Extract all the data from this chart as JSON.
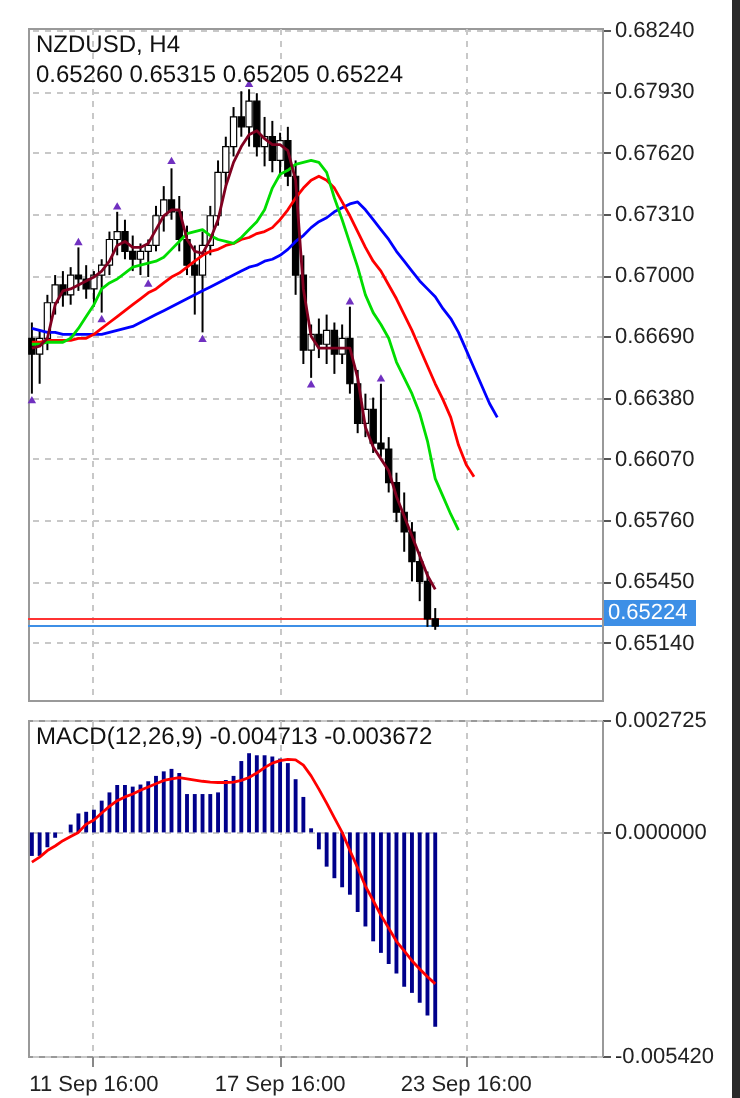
{
  "chart_data": [
    {
      "type": "candlestick",
      "title": "NZDUSD, H4",
      "subtitle": "0.65260 0.65315 0.65205 0.65224",
      "categories": [
        null,
        null,
        null,
        null,
        null,
        null,
        null,
        null,
        null,
        null,
        null,
        null,
        null,
        null,
        null,
        null,
        null,
        null,
        null,
        null,
        null,
        null,
        null,
        null,
        null,
        null,
        null,
        null,
        null,
        null,
        null,
        null,
        null,
        null,
        null,
        null,
        null,
        null,
        null,
        null,
        null,
        null,
        null,
        null,
        null,
        null,
        null,
        null,
        null,
        null,
        null,
        null,
        null,
        null,
        null,
        null,
        null,
        null,
        null,
        null,
        null,
        null,
        null,
        null,
        null,
        null,
        null,
        null,
        null,
        null,
        null,
        null,
        null,
        null
      ],
      "ohlc": [
        [
          0.6668,
          0.6676,
          0.664,
          0.666
        ],
        [
          0.666,
          0.6672,
          0.6645,
          0.6668
        ],
        [
          0.6668,
          0.669,
          0.6662,
          0.6686
        ],
        [
          0.6686,
          0.67,
          0.668,
          0.6695
        ],
        [
          0.6695,
          0.6702,
          0.6684,
          0.669
        ],
        [
          0.669,
          0.6704,
          0.6685,
          0.67
        ],
        [
          0.67,
          0.6714,
          0.6692,
          0.6698
        ],
        [
          0.6698,
          0.6705,
          0.6688,
          0.6693
        ],
        [
          0.6693,
          0.6702,
          0.6684,
          0.67
        ],
        [
          0.67,
          0.6708,
          0.6681,
          0.6705
        ],
        [
          0.6705,
          0.6722,
          0.67,
          0.6718
        ],
        [
          0.6718,
          0.6732,
          0.671,
          0.6722
        ],
        [
          0.6722,
          0.6728,
          0.6708,
          0.6712
        ],
        [
          0.6712,
          0.672,
          0.6702,
          0.6708
        ],
        [
          0.6708,
          0.6716,
          0.67,
          0.6712
        ],
        [
          0.6712,
          0.6718,
          0.6699,
          0.6715
        ],
        [
          0.6715,
          0.6735,
          0.6712,
          0.673
        ],
        [
          0.673,
          0.6745,
          0.6722,
          0.6738
        ],
        [
          0.6738,
          0.6754,
          0.6728,
          0.6732
        ],
        [
          0.6732,
          0.674,
          0.6712,
          0.6718
        ],
        [
          0.6718,
          0.6725,
          0.67,
          0.6705
        ],
        [
          0.6705,
          0.6715,
          0.668,
          0.67
        ],
        [
          0.67,
          0.6722,
          0.6671,
          0.6715
        ],
        [
          0.6715,
          0.6735,
          0.671,
          0.673
        ],
        [
          0.673,
          0.6758,
          0.6725,
          0.6752
        ],
        [
          0.6752,
          0.677,
          0.6745,
          0.6765
        ],
        [
          0.6765,
          0.6785,
          0.676,
          0.678
        ],
        [
          0.678,
          0.6793,
          0.677,
          0.6775
        ],
        [
          0.6775,
          0.6794,
          0.6765,
          0.6788
        ],
        [
          0.6788,
          0.6792,
          0.676,
          0.6765
        ],
        [
          0.6765,
          0.678,
          0.6755,
          0.677
        ],
        [
          0.677,
          0.6778,
          0.6752,
          0.6758
        ],
        [
          0.6758,
          0.6772,
          0.675,
          0.6768
        ],
        [
          0.6768,
          0.6775,
          0.6745,
          0.675
        ],
        [
          0.675,
          0.6758,
          0.669,
          0.67
        ],
        [
          0.67,
          0.671,
          0.6655,
          0.6662
        ],
        [
          0.6662,
          0.6675,
          0.6648,
          0.667
        ],
        [
          0.667,
          0.6678,
          0.6658,
          0.6665
        ],
        [
          0.6665,
          0.668,
          0.6655,
          0.6672
        ],
        [
          0.6672,
          0.6676,
          0.665,
          0.666
        ],
        [
          0.666,
          0.6675,
          0.6655,
          0.6668
        ],
        [
          0.6668,
          0.6684,
          0.664,
          0.6645
        ],
        [
          0.6645,
          0.6652,
          0.662,
          0.6625
        ],
        [
          0.6625,
          0.664,
          0.6618,
          0.6632
        ],
        [
          0.6632,
          0.6638,
          0.661,
          0.6615
        ],
        [
          0.6615,
          0.6645,
          0.6608,
          0.6612
        ],
        [
          0.6612,
          0.6618,
          0.659,
          0.6595
        ],
        [
          0.6595,
          0.66,
          0.6575,
          0.658
        ],
        [
          0.658,
          0.659,
          0.656,
          0.657
        ],
        [
          0.657,
          0.6575,
          0.6545,
          0.6555
        ],
        [
          0.6555,
          0.656,
          0.6535,
          0.6545
        ],
        [
          0.6545,
          0.655,
          0.6522,
          0.6526
        ],
        [
          0.6526,
          0.65315,
          0.65205,
          0.65224
        ],
        null,
        null,
        null,
        null,
        null,
        null,
        null,
        null,
        null,
        null,
        null,
        null,
        null,
        null,
        null,
        null,
        null,
        null,
        null,
        null,
        null
      ],
      "series": [
        {
          "type": "line",
          "color": "#0000ff",
          "values": [
            0.6673,
            0.6672,
            0.6671,
            0.6671,
            0.667,
            0.667,
            0.667,
            0.667,
            0.667,
            0.667,
            0.6671,
            0.6672,
            0.6673,
            0.6674,
            0.6676,
            0.6678,
            0.668,
            0.6682,
            0.6684,
            0.6686,
            0.6688,
            0.669,
            0.6692,
            0.6694,
            0.6696,
            0.6698,
            0.67,
            0.6702,
            0.6704,
            0.6705,
            0.6707,
            0.6708,
            0.671,
            0.6713,
            0.6717,
            0.672,
            0.6724,
            0.6727,
            0.6729,
            0.6732,
            0.6734,
            0.6736,
            0.6737,
            0.6733,
            0.6728,
            0.6723,
            0.6718,
            0.6712,
            0.6707,
            0.6702,
            0.6697,
            0.6693,
            0.6689,
            0.6683,
            0.6678,
            0.6671,
            0.6662,
            0.6653,
            0.6644,
            0.6635,
            0.6628,
            null,
            null,
            null,
            null,
            null,
            null,
            null,
            null,
            null,
            null,
            null,
            null,
            null
          ]
        },
        {
          "type": "line",
          "color": "#ff0000",
          "values": [
            0.6666,
            0.6666,
            0.6667,
            0.6667,
            0.6667,
            0.6667,
            0.6668,
            0.6668,
            0.667,
            0.6673,
            0.6676,
            0.6679,
            0.6682,
            0.6685,
            0.6688,
            0.6691,
            0.6693,
            0.6696,
            0.6699,
            0.6701,
            0.6704,
            0.6707,
            0.671,
            0.6712,
            0.6713,
            0.6715,
            0.6716,
            0.6718,
            0.6719,
            0.6721,
            0.6722,
            0.6724,
            0.6728,
            0.6733,
            0.6739,
            0.6744,
            0.6748,
            0.675,
            0.6748,
            0.6744,
            0.6737,
            0.673,
            0.6722,
            0.6714,
            0.6707,
            0.6702,
            0.6695,
            0.6688,
            0.668,
            0.6672,
            0.6663,
            0.6654,
            0.6645,
            0.6637,
            0.6628,
            0.6614,
            0.6604,
            0.6598,
            null,
            null,
            null,
            null,
            null,
            null,
            null,
            null,
            null,
            null,
            null,
            null,
            null,
            null,
            null,
            null
          ]
        },
        {
          "type": "line",
          "color": "#00dd00",
          "values": [
            0.6665,
            0.6665,
            0.6666,
            0.6666,
            0.6666,
            0.6668,
            0.6673,
            0.6679,
            0.6685,
            0.6693,
            0.6696,
            0.6698,
            0.6701,
            0.6704,
            0.6705,
            0.6706,
            0.6707,
            0.6709,
            0.6713,
            0.6717,
            0.6721,
            0.6722,
            0.6723,
            0.672,
            0.6718,
            0.6717,
            0.6716,
            0.6719,
            0.6723,
            0.6727,
            0.6733,
            0.6744,
            0.6751,
            0.6753,
            0.6756,
            0.6757,
            0.6758,
            0.6757,
            0.6752,
            0.6739,
            0.6728,
            0.6716,
            0.6704,
            0.669,
            0.6681,
            0.6675,
            0.6668,
            0.6656,
            0.6648,
            0.664,
            0.663,
            0.6616,
            0.6597,
            0.6588,
            0.6579,
            0.6571,
            null,
            null,
            null,
            null,
            null,
            null,
            null,
            null,
            null,
            null,
            null,
            null,
            null,
            null,
            null,
            null,
            null,
            null
          ]
        },
        {
          "type": "line",
          "color": "#800020",
          "values": [
            0.6663,
            0.6664,
            0.6668,
            0.6685,
            0.6692,
            0.6693,
            0.6695,
            0.6697,
            0.6699,
            0.6702,
            0.6707,
            0.6715,
            0.6717,
            0.6714,
            0.6714,
            0.6716,
            0.6723,
            0.673,
            0.6733,
            0.6733,
            0.6718,
            0.6712,
            0.6711,
            0.6718,
            0.6728,
            0.6745,
            0.6757,
            0.6765,
            0.6771,
            0.6773,
            0.6769,
            0.6766,
            0.6766,
            0.6763,
            0.6748,
            0.6693,
            0.6669,
            0.6663,
            0.6663,
            0.6663,
            0.6663,
            0.6663,
            0.6648,
            0.6623,
            0.6613,
            0.6607,
            0.6601,
            0.6588,
            0.6578,
            0.6568,
            0.6558,
            0.6548,
            0.6541,
            null,
            null,
            null,
            null,
            null,
            null,
            null,
            null,
            null,
            null,
            null,
            null,
            null,
            null,
            null,
            null,
            null,
            null,
            null,
            null,
            null
          ]
        },
        {
          "type": "scatter",
          "marker": "triangle",
          "color": "#7030c0",
          "values": [
            null,
            null,
            null,
            null,
            null,
            null,
            0.6717,
            null,
            null,
            null,
            null,
            0.6735,
            null,
            null,
            null,
            null,
            null,
            null,
            0.6758,
            null,
            null,
            null,
            null,
            null,
            null,
            null,
            null,
            null,
            0.6797,
            null,
            null,
            null,
            null,
            null,
            null,
            null,
            null,
            null,
            null,
            null,
            null,
            0.6687,
            null,
            null,
            null,
            0.6648,
            null,
            null,
            null,
            null,
            null,
            null,
            null,
            null,
            null,
            null,
            null,
            null,
            null,
            null,
            null,
            null,
            null,
            null,
            null,
            null,
            null,
            null,
            null,
            null,
            null,
            null,
            null,
            null
          ]
        },
        {
          "type": "scatter",
          "marker": "triangle",
          "color": "#7030c0",
          "values": [
            0.6637,
            null,
            null,
            null,
            null,
            null,
            null,
            null,
            null,
            0.6678,
            null,
            null,
            null,
            null,
            null,
            0.6696,
            null,
            null,
            null,
            null,
            null,
            null,
            0.6668,
            null,
            null,
            null,
            null,
            null,
            null,
            null,
            null,
            null,
            null,
            null,
            null,
            null,
            0.6645,
            null,
            null,
            null,
            null,
            null,
            null,
            null,
            null,
            null,
            null,
            null,
            null,
            null,
            null,
            null,
            null,
            null,
            null,
            null,
            null,
            null,
            null,
            null,
            null,
            null,
            null,
            null,
            null,
            null,
            null,
            null,
            null,
            null,
            null,
            null,
            null,
            null
          ]
        }
      ],
      "ylim": [
        0.6485,
        0.6825
      ],
      "yticks": [
        {
          "value": 0.6824,
          "label": "0.68240"
        },
        {
          "value": 0.6793,
          "label": "0.67930"
        },
        {
          "value": 0.6762,
          "label": "0.67620"
        },
        {
          "value": 0.6731,
          "label": "0.67310"
        },
        {
          "value": 0.67,
          "label": "0.67000"
        },
        {
          "value": 0.6669,
          "label": "0.66690"
        },
        {
          "value": 0.6638,
          "label": "0.66380"
        },
        {
          "value": 0.6607,
          "label": "0.66070"
        },
        {
          "value": 0.6576,
          "label": "0.65760"
        },
        {
          "value": 0.6545,
          "label": "0.65450"
        },
        {
          "value": 0.6514,
          "label": "0.65140"
        }
      ],
      "ref_lines": [
        {
          "axis": "y",
          "value": 0.6526,
          "color": "#ff3333"
        },
        {
          "axis": "y",
          "value": 0.65224,
          "label": "0.65224",
          "color": "#3d8fe6"
        }
      ],
      "grid": true,
      "tick_labels": "y"
    },
    {
      "type": "bar",
      "title": "MACD(12,26,9) -0.004713 -0.003672",
      "categories": [
        null,
        null,
        null,
        null,
        null,
        null,
        null,
        null,
        "11 Sep 16:00",
        null,
        null,
        null,
        null,
        null,
        null,
        null,
        null,
        null,
        null,
        null,
        null,
        null,
        null,
        null,
        null,
        null,
        null,
        null,
        null,
        null,
        null,
        null,
        "17 Sep 16:00",
        null,
        null,
        null,
        null,
        null,
        null,
        null,
        null,
        null,
        null,
        null,
        null,
        null,
        null,
        null,
        null,
        null,
        null,
        null,
        null,
        null,
        null,
        null,
        "23 Sep 16:00",
        null,
        null,
        null,
        null,
        null,
        null,
        null,
        null,
        null,
        null,
        null,
        null,
        null,
        null,
        null,
        null,
        null
      ],
      "series": [
        {
          "color": "#00008b",
          "values": [
            -0.00057,
            -0.00057,
            -0.00036,
            -0.00013,
            0,
            0.00019,
            0.00046,
            0.0005,
            0.00055,
            0.00077,
            0.00097,
            0.00115,
            0.00115,
            0.00111,
            0.00116,
            0.00124,
            0.00137,
            0.00148,
            0.00154,
            0.00144,
            0.00093,
            0.00093,
            0.00093,
            0.00093,
            0.00097,
            0.00127,
            0.00137,
            0.00173,
            0.00192,
            0.00187,
            0.00187,
            0.00184,
            0.00179,
            0.00168,
            0.00129,
            0.00086,
            0.0001,
            -0.00041,
            -0.00083,
            -0.00111,
            -0.00133,
            -0.00151,
            -0.00193,
            -0.00228,
            -0.00264,
            -0.00292,
            -0.00319,
            -0.00342,
            -0.00374,
            -0.00389,
            -0.00413,
            -0.00444,
            -0.004713,
            null,
            null,
            null,
            null,
            null,
            null,
            null,
            null,
            null,
            null,
            null,
            null,
            null,
            null,
            null,
            null,
            null,
            null,
            null,
            null,
            null
          ]
        },
        {
          "type": "line",
          "color": "#ff0000",
          "values": [
            -0.00072,
            -0.0006,
            -0.00044,
            -0.00033,
            -0.0002,
            -0.0001,
            0,
            0.0002,
            0.0003,
            0.00047,
            0.00063,
            0.00077,
            0.00086,
            0.00093,
            0.00102,
            0.0011,
            0.00118,
            0.00126,
            0.0013,
            0.00133,
            0.0013,
            0.00127,
            0.00124,
            0.00122,
            0.00121,
            0.00121,
            0.00122,
            0.00126,
            0.00133,
            0.00144,
            0.00157,
            0.00168,
            0.00174,
            0.00177,
            0.00176,
            0.00163,
            0.00137,
            0.00105,
            0.00071,
            0.00035,
            0,
            -0.00044,
            -0.00086,
            -0.0013,
            -0.00165,
            -0.00201,
            -0.00232,
            -0.00264,
            -0.00287,
            -0.00311,
            -0.00331,
            -0.0035,
            -0.003672,
            null,
            null,
            null,
            null,
            null,
            null,
            null,
            null,
            null,
            null,
            null,
            null,
            null,
            null,
            null,
            null,
            null,
            null,
            null,
            null,
            null
          ]
        }
      ],
      "ylim": [
        -0.00542,
        0.002725
      ],
      "yticks": [
        {
          "value": 0.002725,
          "label": "0.002725"
        },
        {
          "value": 0,
          "label": "0.000000"
        },
        {
          "value": -0.00542,
          "label": "-0.005420"
        }
      ],
      "grid": true
    }
  ]
}
